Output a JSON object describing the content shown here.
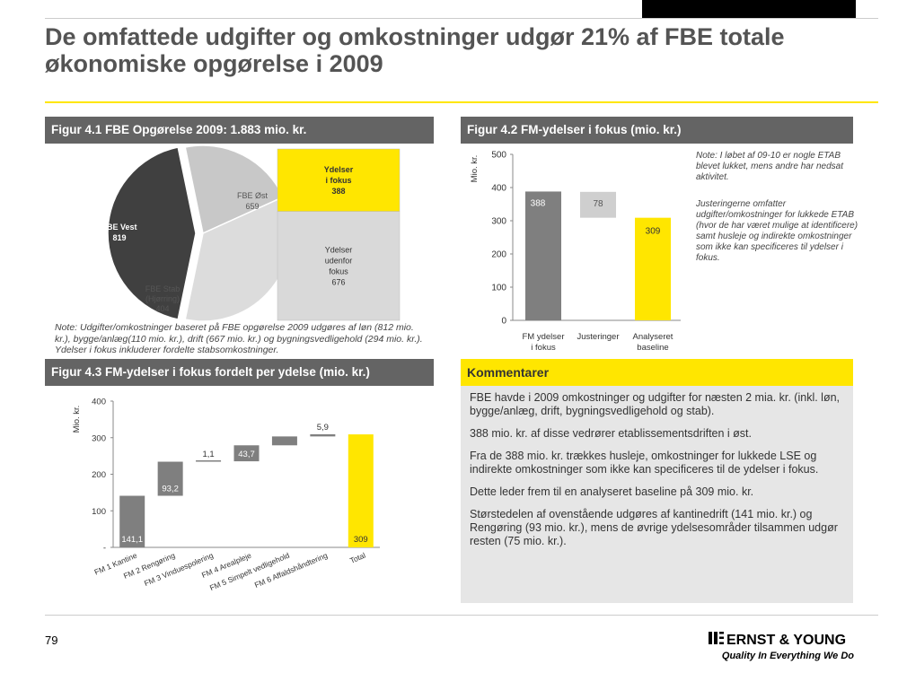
{
  "page": {
    "title_line1": "De omfattede udgifter og omkostninger udgør 21% af FBE totale",
    "title_line2": "økonomiske opgørelse i 2009",
    "page_number": "79"
  },
  "fig41": {
    "header": "Figur 4.1 FBE Opgørelse 2009: 1.883 mio. kr.",
    "note": "Note: Udgifter/omkostninger baseret på FBE opgørelse 2009 udgøres af løn (812 mio. kr.), bygge/anlæg(110 mio. kr.), drift (667 mio. kr.) og bygningsvedligehold (294 mio. kr.). Ydelser i fokus inkluderer fordelte stabsomkostninger.",
    "slices": [
      {
        "label": "FBE Vest",
        "value_text": "819",
        "value": 819,
        "color": "#404040",
        "text_color": "#ffffff"
      },
      {
        "label": "FBE Stab (Hjørring)",
        "label_line1": "FBE Stab",
        "label_line2": "(Hjørring)",
        "value_text": "404",
        "value": 404,
        "color": "#c8c8c8",
        "text_color": "#555555"
      },
      {
        "label": "FBE Øst",
        "value_text": "659",
        "value": 659,
        "color": "#dcdcdc",
        "text_color": "#555555"
      }
    ],
    "stack": [
      {
        "label_lines": [
          "Ydelser",
          "i fokus"
        ],
        "value_text": "388",
        "value": 388,
        "color": "#ffe600"
      },
      {
        "label_lines": [
          "Ydelser",
          "udenfor",
          "fokus"
        ],
        "value_text": "676",
        "value": 676,
        "color": "#d9d9d9"
      }
    ]
  },
  "fig42": {
    "header": "Figur 4.2 FM-ydelser i fokus (mio. kr.)",
    "ylabel": "Mio. kr.",
    "yticks": [
      "0",
      "100",
      "200",
      "300",
      "400",
      "500"
    ],
    "note1": "Note: I løbet af 09-10 er nogle ETAB blevet lukket, mens andre har nedsat aktivitet.",
    "note2": "Justeringerne omfatter udgifter/omkostninger for lukkede ETAB (hvor de har været mulige at identificere) samt husleje og indirekte omkostninger som ikke kan specificeres til ydelser i fokus.",
    "chart_data": {
      "type": "bar",
      "categories": [
        "FM ydelser i fokus",
        "Justeringer",
        "Analyseret baseline"
      ],
      "category_lines": [
        [
          "FM ydelser",
          "i fokus"
        ],
        [
          "Justeringer"
        ],
        [
          "Analyseret",
          "baseline"
        ]
      ],
      "bars": [
        {
          "base": 0,
          "value": 388,
          "label": "388",
          "color": "#7f7f7f",
          "label_color": "#ffffff"
        },
        {
          "base": 309,
          "value": 78,
          "label": "78",
          "color": "#cfcfcf",
          "label_color": "#555555"
        },
        {
          "base": 0,
          "value": 309,
          "label": "309",
          "color": "#ffe600",
          "label_color": "#333333"
        }
      ],
      "ylim": [
        0,
        500
      ]
    }
  },
  "fig43": {
    "header": "Figur 4.3 FM-ydelser i fokus fordelt per ydelse (mio. kr.)",
    "ylabel": "Mio. kr.",
    "yticks": [
      "-",
      "100",
      "200",
      "300",
      "400"
    ],
    "chart_data": {
      "type": "bar",
      "categories": [
        "FM 1 Kantine",
        "FM 2 Rengøring",
        "FM 3 Vinduespolering",
        "FM 4 Arealpleje",
        "FM 5 Simpelt vedligehold",
        "FM 6 Affaldshåndtering",
        "Total"
      ],
      "bars": [
        {
          "base": 0,
          "value": 141.1,
          "label": "141,1",
          "color": "#7f7f7f",
          "label_inside": true,
          "label_color": "#ffffff"
        },
        {
          "base": 141.1,
          "value": 93.2,
          "label": "93,2",
          "color": "#7f7f7f",
          "label_inside": true,
          "label_color": "#ffffff"
        },
        {
          "base": 234.3,
          "value": 1.1,
          "label": "1,1",
          "color": "#7f7f7f",
          "label_inside": false,
          "label_color": "#333333"
        },
        {
          "base": 235.4,
          "value": 43.7,
          "label": "43,7",
          "color": "#7f7f7f",
          "label_inside": true,
          "label_color": "#ffffff"
        },
        {
          "base": 279.1,
          "value": 24.3,
          "label": "24,3",
          "color": "#7f7f7f",
          "label_inside": true,
          "label_color": "#ffffff"
        },
        {
          "base": 303.4,
          "value": 5.9,
          "label": "5,9",
          "color": "#7f7f7f",
          "label_inside": false,
          "label_color": "#333333"
        },
        {
          "base": 0,
          "value": 309,
          "label": "309",
          "color": "#ffe600",
          "label_inside": true,
          "label_color": "#333333"
        }
      ],
      "ylim": [
        0,
        400
      ]
    }
  },
  "comments": {
    "header": "Kommentarer",
    "paragraphs": [
      "FBE havde i 2009 omkostninger og udgifter for næsten 2 mia. kr. (inkl. løn, bygge/anlæg, drift, bygningsvedligehold og stab).",
      "388 mio. kr. af disse vedrører etablissementsdriften i øst.",
      "Fra de 388 mio. kr. trækkes husleje, omkostninger for lukkede LSE og indirekte omkostninger som ikke kan specificeres til de ydelser i fokus.",
      "Dette leder frem til en analyseret baseline på 309 mio. kr.",
      "Størstedelen af ovenstående udgøres af kantinedrift (141 mio. kr.) og Rengøring (93 mio. kr.), mens de øvrige ydelsesområder tilsammen udgør resten (75 mio. kr.)."
    ]
  },
  "logo": {
    "name": "Ernst & Young",
    "tagline": "Quality In Everything We Do"
  }
}
